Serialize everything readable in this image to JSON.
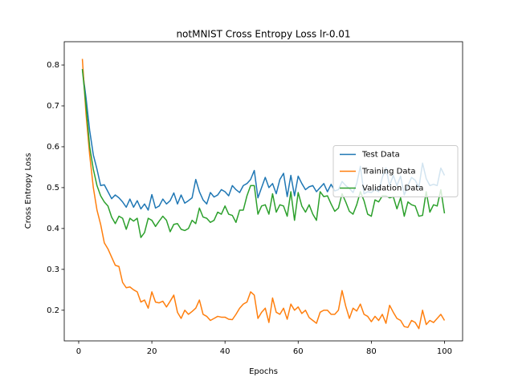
{
  "chart_data": {
    "type": "line",
    "title": "notMNIST Cross Entropy Loss lr-0.01",
    "x_label": "Epochs",
    "y_label": "Cross Entropy Loss",
    "x": [
      1,
      2,
      3,
      4,
      5,
      6,
      7,
      8,
      9,
      10,
      11,
      12,
      13,
      14,
      15,
      16,
      17,
      18,
      19,
      20,
      21,
      22,
      23,
      24,
      25,
      26,
      27,
      28,
      29,
      30,
      31,
      32,
      33,
      34,
      35,
      36,
      37,
      38,
      39,
      40,
      41,
      42,
      43,
      44,
      45,
      46,
      47,
      48,
      49,
      50,
      51,
      52,
      53,
      54,
      55,
      56,
      57,
      58,
      59,
      60,
      61,
      62,
      63,
      64,
      65,
      66,
      67,
      68,
      69,
      70,
      71,
      72,
      73,
      74,
      75,
      76,
      77,
      78,
      79,
      80,
      81,
      82,
      83,
      84,
      85,
      86,
      87,
      88,
      89,
      90,
      91,
      92,
      93,
      94,
      95,
      96,
      97,
      98,
      99,
      100
    ],
    "series": [
      {
        "name": "Test Data",
        "color": "#1f77b4",
        "values": [
          0.79,
          0.72,
          0.64,
          0.58,
          0.545,
          0.505,
          0.507,
          0.49,
          0.473,
          0.482,
          0.475,
          0.465,
          0.452,
          0.472,
          0.452,
          0.468,
          0.448,
          0.46,
          0.445,
          0.483,
          0.45,
          0.455,
          0.472,
          0.46,
          0.468,
          0.487,
          0.46,
          0.482,
          0.462,
          0.468,
          0.475,
          0.52,
          0.49,
          0.47,
          0.46,
          0.488,
          0.477,
          0.482,
          0.495,
          0.49,
          0.48,
          0.505,
          0.495,
          0.488,
          0.505,
          0.51,
          0.52,
          0.542,
          0.475,
          0.5,
          0.525,
          0.5,
          0.51,
          0.485,
          0.52,
          0.535,
          0.478,
          0.53,
          0.48,
          0.528,
          0.51,
          0.495,
          0.502,
          0.505,
          0.49,
          0.5,
          0.51,
          0.49,
          0.508,
          0.492,
          0.495,
          0.515,
          0.505,
          0.498,
          0.488,
          0.51,
          0.552,
          0.485,
          0.49,
          0.488,
          0.495,
          0.49,
          0.525,
          0.548,
          0.505,
          0.53,
          0.505,
          0.528,
          0.482,
          0.505,
          0.525,
          0.518,
          0.5,
          0.56,
          0.522,
          0.505,
          0.508,
          0.505,
          0.548,
          0.53
        ]
      },
      {
        "name": "Training Data",
        "color": "#ff7f0e",
        "values": [
          0.815,
          0.68,
          0.58,
          0.5,
          0.445,
          0.41,
          0.365,
          0.35,
          0.33,
          0.31,
          0.307,
          0.268,
          0.255,
          0.257,
          0.25,
          0.245,
          0.22,
          0.225,
          0.205,
          0.245,
          0.22,
          0.218,
          0.222,
          0.208,
          0.222,
          0.237,
          0.195,
          0.18,
          0.2,
          0.19,
          0.197,
          0.205,
          0.225,
          0.19,
          0.185,
          0.175,
          0.18,
          0.185,
          0.183,
          0.183,
          0.178,
          0.177,
          0.19,
          0.205,
          0.215,
          0.22,
          0.245,
          0.237,
          0.18,
          0.195,
          0.205,
          0.17,
          0.23,
          0.195,
          0.19,
          0.205,
          0.178,
          0.215,
          0.2,
          0.208,
          0.192,
          0.2,
          0.182,
          0.175,
          0.168,
          0.195,
          0.2,
          0.2,
          0.19,
          0.19,
          0.2,
          0.248,
          0.21,
          0.18,
          0.205,
          0.198,
          0.215,
          0.19,
          0.185,
          0.172,
          0.185,
          0.175,
          0.19,
          0.168,
          0.212,
          0.195,
          0.18,
          0.175,
          0.16,
          0.158,
          0.175,
          0.17,
          0.155,
          0.2,
          0.165,
          0.175,
          0.17,
          0.18,
          0.19,
          0.175
        ]
      },
      {
        "name": "Validation Data",
        "color": "#2ca02c",
        "values": [
          0.79,
          0.7,
          0.6,
          0.545,
          0.505,
          0.48,
          0.465,
          0.455,
          0.428,
          0.412,
          0.43,
          0.425,
          0.398,
          0.425,
          0.418,
          0.425,
          0.378,
          0.39,
          0.425,
          0.42,
          0.405,
          0.418,
          0.43,
          0.42,
          0.392,
          0.41,
          0.412,
          0.398,
          0.395,
          0.4,
          0.42,
          0.412,
          0.45,
          0.428,
          0.425,
          0.415,
          0.42,
          0.44,
          0.435,
          0.455,
          0.435,
          0.432,
          0.415,
          0.445,
          0.445,
          0.48,
          0.505,
          0.505,
          0.435,
          0.455,
          0.458,
          0.435,
          0.485,
          0.44,
          0.458,
          0.455,
          0.43,
          0.49,
          0.42,
          0.488,
          0.455,
          0.44,
          0.458,
          0.435,
          0.42,
          0.49,
          0.478,
          0.48,
          0.46,
          0.442,
          0.45,
          0.485,
          0.465,
          0.442,
          0.435,
          0.458,
          0.49,
          0.468,
          0.435,
          0.43,
          0.47,
          0.465,
          0.48,
          0.48,
          0.475,
          0.478,
          0.448,
          0.475,
          0.43,
          0.465,
          0.458,
          0.455,
          0.43,
          0.432,
          0.49,
          0.44,
          0.458,
          0.455,
          0.495,
          0.437
        ]
      }
    ],
    "xlim": [
      -3.95,
      104.95
    ],
    "ylim": [
      0.125,
      0.857
    ],
    "xticks": [
      0,
      20,
      40,
      60,
      80,
      100
    ],
    "yticks": [
      0.2,
      0.3,
      0.4,
      0.5,
      0.6,
      0.7,
      0.8
    ],
    "grid": false,
    "legend_loc": "center right"
  }
}
